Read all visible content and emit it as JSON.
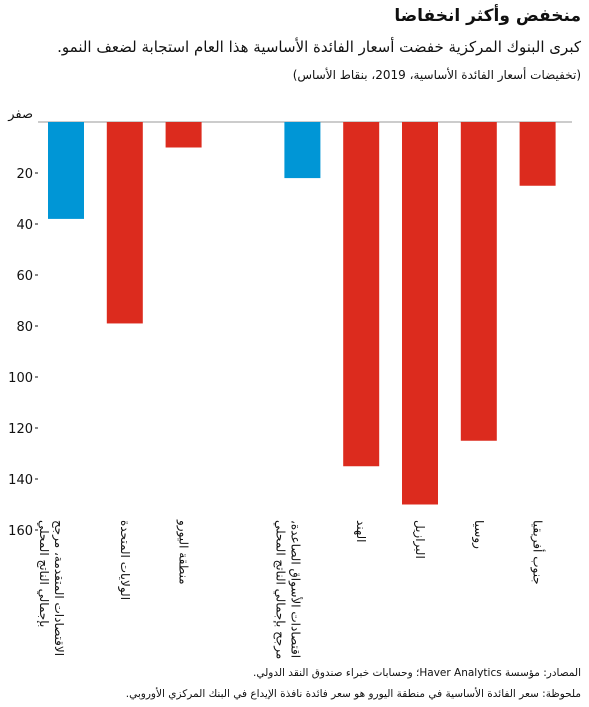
{
  "header": {
    "title": "منخفض وأكثر انخفاضا",
    "subtitle": "كبرى البنوك المركزية خفضت أسعار الفائدة الأساسية هذا العام استجابة لضعف النمو.",
    "units": "(تخفيضات أسعار الفائدة الأساسية، 2019، بنقاط الأساس)"
  },
  "footer": {
    "sources": "المصادر: مؤسسة Haver Analytics؛ وحسابات خبراء صندوق النقد الدولي.",
    "note": "ملحوظة: سعر الفائدة الأساسية في منطقة اليورو هو سعر فائدة نافذة الإيداع في البنك المركزي الأوروبي."
  },
  "chart_data": {
    "type": "bar",
    "ylabel": "",
    "xlabel": "",
    "ylim": [
      0,
      160
    ],
    "y_inverted": true,
    "yticks": [
      {
        "value": 0,
        "label": "صفر"
      },
      {
        "value": 20,
        "label": "20"
      },
      {
        "value": 40,
        "label": "40"
      },
      {
        "value": 60,
        "label": "60"
      },
      {
        "value": 80,
        "label": "80"
      },
      {
        "value": 100,
        "label": "100"
      },
      {
        "value": 120,
        "label": "120"
      },
      {
        "value": 140,
        "label": "140"
      },
      {
        "value": 160,
        "label": "160"
      }
    ],
    "grid": false,
    "categories": [
      {
        "label": [
          "الاقتصادات المتقدمة، مرجح",
          "بإجمالي الناتج المحلي"
        ],
        "value": 38,
        "color": "#0096d6"
      },
      {
        "label": [
          "الولايات المتحدة"
        ],
        "value": 79,
        "color": "#dc2b1e"
      },
      {
        "label": [
          "منطقة اليورو"
        ],
        "value": 10,
        "color": "#dc2b1e"
      },
      {
        "label": [
          "اقتصادات الأسواق الصاعدة،",
          "مرجح بإجمالي الناتج المحلي"
        ],
        "value": 22,
        "color": "#0096d6"
      },
      {
        "label": [
          "الهند"
        ],
        "value": 135,
        "color": "#dc2b1e"
      },
      {
        "label": [
          "البرازيل"
        ],
        "value": 150,
        "color": "#dc2b1e"
      },
      {
        "label": [
          "روسيا"
        ],
        "value": 125,
        "color": "#dc2b1e"
      },
      {
        "label": [
          "جنوب أفريقيا"
        ],
        "value": 25,
        "color": "#dc2b1e"
      }
    ]
  }
}
